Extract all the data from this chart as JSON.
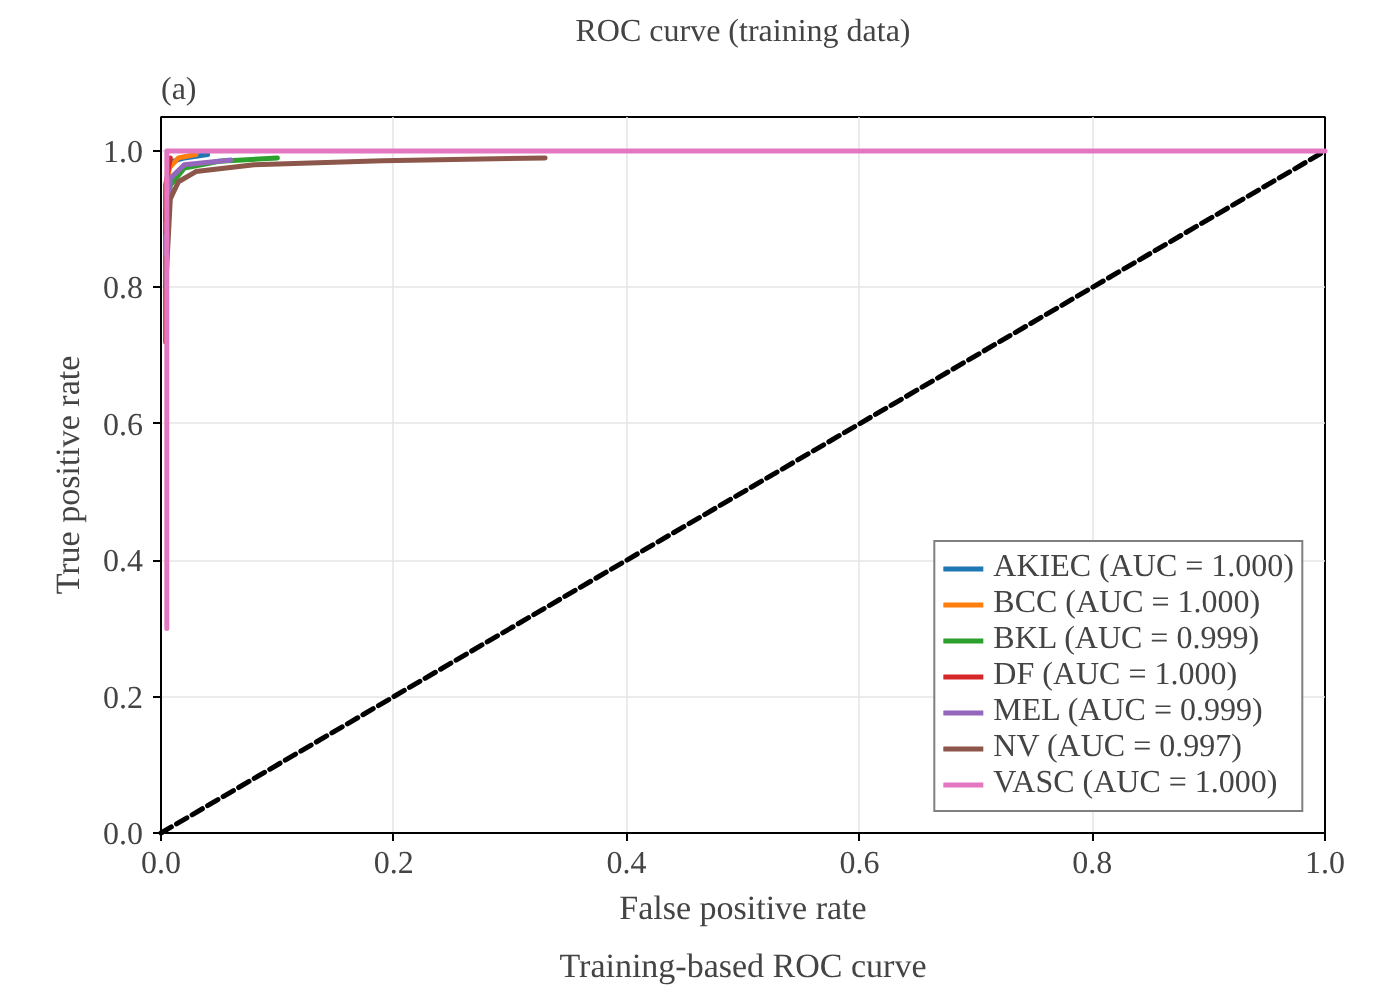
{
  "chart_data": {
    "type": "line",
    "title": "ROC curve (training data)",
    "xlabel": "False positive rate",
    "ylabel": "True positive rate",
    "annotations": [
      "(a)",
      "Training-based ROC curve"
    ],
    "xlim": [
      0,
      1
    ],
    "ylim": [
      0,
      1.05
    ],
    "xticks": [
      {
        "value": 0,
        "label": "0.0"
      },
      0.2,
      0.4,
      0.6,
      0.8,
      {
        "value": 1,
        "label": "1.0"
      }
    ],
    "yticks": [
      {
        "value": 0,
        "label": "0.0"
      },
      0.2,
      0.4,
      0.6,
      0.8,
      {
        "value": 1,
        "label": "1.0"
      }
    ],
    "grid": true,
    "legend": "bottom right",
    "series": [
      {
        "name": "AKIEC (AUC = 1.000)",
        "color": "#1f77b4",
        "x": [
          0.004,
          0.006,
          0.01,
          0.02,
          0.04
        ],
        "values": [
          0.9,
          0.97,
          0.985,
          0.99,
          0.995
        ]
      },
      {
        "name": "BCC (AUC = 1.000)",
        "color": "#ff7f0e",
        "x": [
          0.004,
          0.007,
          0.015,
          0.03
        ],
        "values": [
          0.93,
          0.975,
          0.99,
          0.995
        ]
      },
      {
        "name": "BKL (AUC = 0.999)",
        "color": "#2ca02c",
        "x": [
          0.004,
          0.008,
          0.02,
          0.05,
          0.1
        ],
        "values": [
          0.88,
          0.95,
          0.975,
          0.985,
          0.99
        ]
      },
      {
        "name": "DF (AUC = 1.000)",
        "color": "#d62728",
        "x": [
          0.004,
          0.004,
          0.008
        ],
        "values": [
          0.72,
          0.95,
          0.99
        ]
      },
      {
        "name": "MEL (AUC = 0.999)",
        "color": "#9467bd",
        "x": [
          0.004,
          0.008,
          0.02,
          0.06
        ],
        "values": [
          0.85,
          0.96,
          0.98,
          0.987
        ]
      },
      {
        "name": "NV (AUC = 0.997)",
        "color": "#8c564b",
        "x": [
          0.004,
          0.008,
          0.015,
          0.03,
          0.08,
          0.19,
          0.33
        ],
        "values": [
          0.8,
          0.93,
          0.955,
          0.97,
          0.98,
          0.986,
          0.99
        ]
      },
      {
        "color": "#000000",
        "line_style": "dashed",
        "x": [
          0,
          1
        ],
        "values": [
          0,
          1
        ]
      },
      {
        "name": "VASC (AUC = 1.000)",
        "color": "#e377c2",
        "x": [
          0.005,
          0.005,
          1
        ],
        "values": [
          0.3,
          1,
          1
        ]
      }
    ]
  }
}
